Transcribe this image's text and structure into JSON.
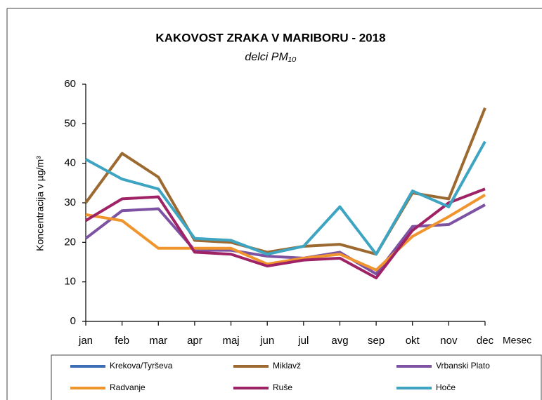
{
  "chart_data": {
    "type": "line",
    "title": "KAKOVOST ZRAKA V MARIBORU - 2018",
    "subtitle": "delci PM₁₀",
    "y_label": "Koncentracija v µg/m³",
    "x_label": "Mesec",
    "categories": [
      "jan",
      "feb",
      "mar",
      "apr",
      "maj",
      "jun",
      "jul",
      "avg",
      "sep",
      "okt",
      "nov",
      "dec"
    ],
    "ylim": [
      0,
      60
    ],
    "yticks": [
      0,
      10,
      20,
      30,
      40,
      50,
      60
    ],
    "grid": false,
    "legend": "bottom",
    "series": [
      {
        "name": "Krekova/Tyrševa",
        "color": "#3d6db5",
        "values": [
          null,
          null,
          null,
          null,
          null,
          null,
          null,
          null,
          null,
          null,
          null,
          null
        ]
      },
      {
        "name": "Miklavž",
        "color": "#9c6a30",
        "values": [
          30,
          42.5,
          36.5,
          20.5,
          20,
          17.5,
          19,
          19.5,
          17,
          32.5,
          31,
          54
        ]
      },
      {
        "name": "Vrbanski Plato",
        "color": "#7d52a3",
        "values": [
          21,
          28,
          28.5,
          18,
          18,
          16.5,
          16,
          17.5,
          12,
          24,
          24.5,
          29.5
        ]
      },
      {
        "name": "Radvanje",
        "color": "#f0952e",
        "values": [
          27,
          25.5,
          18.5,
          18.5,
          18.5,
          14.5,
          16,
          17,
          13,
          21.5,
          26.5,
          32
        ]
      },
      {
        "name": "Ruše",
        "color": "#9e2265",
        "values": [
          25.5,
          31,
          31.5,
          17.5,
          17,
          14,
          15.5,
          16,
          11,
          23,
          30,
          33.5
        ]
      },
      {
        "name": "Hoče",
        "color": "#3da4c2",
        "values": [
          41,
          36,
          33.5,
          21,
          20.5,
          17,
          19,
          29,
          17,
          33,
          29,
          45.5
        ]
      }
    ]
  }
}
